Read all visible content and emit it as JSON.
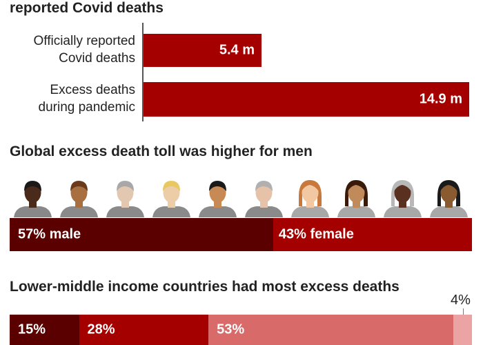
{
  "section1": {
    "title": "reported Covid deaths"
  },
  "section2": {
    "title": "Global excess death toll was higher for men"
  },
  "section3": {
    "title": "Lower-middle income countries had most excess deaths"
  },
  "colors": {
    "bar": "#a50000",
    "male": "#5a0000",
    "female": "#a50000",
    "income_1": "#5a0000",
    "income_2": "#a50000",
    "income_3": "#d86a6a",
    "income_4": "#eba3a3"
  },
  "chart_data": [
    {
      "type": "bar",
      "orientation": "horizontal",
      "title": "reported Covid deaths",
      "categories": [
        "Officially reported Covid deaths",
        "Excess deaths during pandemic"
      ],
      "category_lines": [
        [
          "Officially reported",
          "Covid deaths"
        ],
        [
          "Excess deaths",
          "during pandemic"
        ]
      ],
      "values": [
        5.4,
        14.9
      ],
      "value_labels": [
        "5.4 m",
        "14.9 m"
      ],
      "xlim": [
        0,
        14.9
      ]
    },
    {
      "type": "bar",
      "stacked": true,
      "title": "Global excess death toll was higher for men",
      "segments": [
        {
          "label": "57% male",
          "value": 57
        },
        {
          "label": "43% female",
          "value": 43
        }
      ],
      "icons": [
        "male-face-icon",
        "male-face-icon",
        "male-face-icon",
        "male-face-icon",
        "male-face-icon",
        "male-face-icon",
        "female-face-icon",
        "female-face-icon",
        "female-face-icon",
        "female-face-icon"
      ]
    },
    {
      "type": "bar",
      "stacked": true,
      "title": "Lower-middle income countries had most excess deaths",
      "segments": [
        {
          "label": "15%",
          "value": 15
        },
        {
          "label": "28%",
          "value": 28
        },
        {
          "label": "53%",
          "value": 53
        },
        {
          "label": "4%",
          "value": 4
        }
      ]
    }
  ]
}
